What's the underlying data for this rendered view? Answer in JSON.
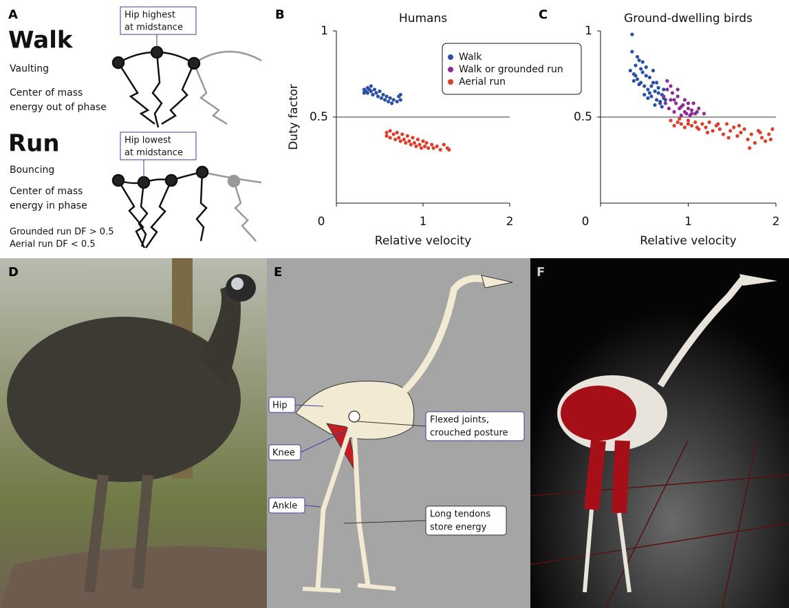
{
  "panel_labels": [
    "A",
    "B",
    "C",
    "D",
    "E",
    "F"
  ],
  "panel_a": {
    "walk_title": "Walk",
    "walk_gait": "Vaulting",
    "walk_energy": [
      "Center of mass",
      "energy out of phase"
    ],
    "walk_callout": [
      "Hip highest",
      "at midstance"
    ],
    "run_title": "Run",
    "run_gait": "Bouncing",
    "run_energy": [
      "Center of mass",
      "energy in phase"
    ],
    "run_callout": [
      "Hip lowest",
      "at midstance"
    ],
    "duty_factor_notes": [
      "Grounded run DF > 0.5",
      "Aerial run DF < 0.5"
    ]
  },
  "chart_data": [
    {
      "type": "scatter",
      "title": "Humans",
      "x_label": "Relative velocity",
      "y_label": "Duty factor",
      "xlim": [
        0,
        2
      ],
      "ylim": [
        0,
        1
      ],
      "xticks": [
        0,
        1,
        2
      ],
      "yticks": [
        0.5,
        1
      ],
      "reference_line": 0.5,
      "legend": "top-right",
      "series": [
        {
          "name": "Walk",
          "color": "#2a4fa8",
          "x": [
            0.32,
            0.32,
            0.34,
            0.36,
            0.36,
            0.38,
            0.4,
            0.4,
            0.42,
            0.44,
            0.46,
            0.48,
            0.5,
            0.52,
            0.54,
            0.56,
            0.58,
            0.6,
            0.62,
            0.64,
            0.66,
            0.7,
            0.72,
            0.74,
            0.74
          ],
          "values": [
            0.64,
            0.66,
            0.65,
            0.67,
            0.64,
            0.66,
            0.65,
            0.68,
            0.63,
            0.66,
            0.64,
            0.62,
            0.65,
            0.61,
            0.63,
            0.6,
            0.62,
            0.59,
            0.61,
            0.58,
            0.6,
            0.59,
            0.62,
            0.6,
            0.63
          ]
        },
        {
          "name": "Walk or grounded run",
          "color": "#8e2a96",
          "x": [],
          "values": []
        },
        {
          "name": "Aerial run",
          "color": "#e03c2a",
          "x": [
            0.58,
            0.58,
            0.62,
            0.62,
            0.66,
            0.68,
            0.7,
            0.72,
            0.74,
            0.76,
            0.78,
            0.8,
            0.82,
            0.84,
            0.86,
            0.88,
            0.9,
            0.92,
            0.94,
            0.96,
            0.98,
            1.0,
            1.02,
            1.04,
            1.06,
            1.1,
            1.12,
            1.16,
            1.2,
            1.24,
            1.28,
            1.3
          ],
          "values": [
            0.41,
            0.39,
            0.42,
            0.38,
            0.4,
            0.37,
            0.41,
            0.38,
            0.36,
            0.4,
            0.37,
            0.35,
            0.39,
            0.36,
            0.34,
            0.38,
            0.35,
            0.33,
            0.37,
            0.34,
            0.32,
            0.36,
            0.33,
            0.35,
            0.32,
            0.34,
            0.32,
            0.33,
            0.31,
            0.34,
            0.32,
            0.31
          ]
        }
      ]
    },
    {
      "type": "scatter",
      "title": "Ground-dwelling birds",
      "x_label": "Relative velocity",
      "xlim": [
        0,
        2
      ],
      "ylim": [
        0,
        1
      ],
      "xticks": [
        0,
        1,
        2
      ],
      "yticks": [
        0.5,
        1
      ],
      "reference_line": 0.5,
      "series": [
        {
          "name": "Walk",
          "color": "#2a4fa8",
          "x": [
            0.36,
            0.34,
            0.38,
            0.4,
            0.42,
            0.44,
            0.46,
            0.48,
            0.5,
            0.52,
            0.54,
            0.56,
            0.58,
            0.6,
            0.62,
            0.64,
            0.66,
            0.68,
            0.7,
            0.72,
            0.36,
            0.4,
            0.44,
            0.48,
            0.52,
            0.56,
            0.6,
            0.64,
            0.68,
            0.72,
            0.38,
            0.46,
            0.54,
            0.62,
            0.7,
            0.42,
            0.5,
            0.58,
            0.66,
            0.74
          ],
          "values": [
            0.98,
            0.77,
            0.75,
            0.8,
            0.72,
            0.83,
            0.7,
            0.76,
            0.68,
            0.79,
            0.66,
            0.73,
            0.62,
            0.7,
            0.65,
            0.6,
            0.67,
            0.58,
            0.63,
            0.61,
            0.88,
            0.74,
            0.69,
            0.82,
            0.74,
            0.64,
            0.77,
            0.7,
            0.59,
            0.66,
            0.71,
            0.78,
            0.61,
            0.57,
            0.56,
            0.85,
            0.63,
            0.68,
            0.64,
            0.6
          ]
        },
        {
          "name": "Walk or grounded run",
          "color": "#8e2a96",
          "x": [
            0.72,
            0.74,
            0.76,
            0.78,
            0.8,
            0.82,
            0.84,
            0.86,
            0.88,
            0.9,
            0.92,
            0.94,
            0.96,
            0.98,
            1.0,
            1.02,
            1.04,
            1.06,
            1.08,
            1.1,
            0.76,
            0.8,
            0.84,
            0.88,
            0.92,
            0.96,
            1.0,
            1.04,
            1.12,
            1.18
          ],
          "values": [
            0.62,
            0.58,
            0.66,
            0.55,
            0.6,
            0.64,
            0.53,
            0.58,
            0.62,
            0.55,
            0.51,
            0.57,
            0.6,
            0.52,
            0.55,
            0.51,
            0.54,
            0.58,
            0.52,
            0.53,
            0.71,
            0.68,
            0.6,
            0.66,
            0.56,
            0.53,
            0.58,
            0.52,
            0.55,
            0.52
          ]
        },
        {
          "name": "Aerial run",
          "color": "#e03c2a",
          "x": [
            0.8,
            0.84,
            0.88,
            0.92,
            0.96,
            1.0,
            1.04,
            1.08,
            1.12,
            1.16,
            1.2,
            1.24,
            1.28,
            1.32,
            1.36,
            1.4,
            1.44,
            1.48,
            1.52,
            1.56,
            1.6,
            1.64,
            1.68,
            1.72,
            1.76,
            1.8,
            1.84,
            1.88,
            1.92,
            1.96,
            0.9,
            1.0,
            1.1,
            1.22,
            1.34,
            1.46,
            1.58,
            1.7,
            1.82,
            1.94
          ],
          "values": [
            0.48,
            0.45,
            0.47,
            0.46,
            0.44,
            0.48,
            0.45,
            0.47,
            0.43,
            0.46,
            0.44,
            0.47,
            0.42,
            0.45,
            0.43,
            0.4,
            0.46,
            0.42,
            0.44,
            0.39,
            0.41,
            0.43,
            0.37,
            0.4,
            0.35,
            0.42,
            0.38,
            0.36,
            0.4,
            0.43,
            0.49,
            0.46,
            0.44,
            0.41,
            0.46,
            0.38,
            0.45,
            0.32,
            0.41,
            0.37
          ]
        }
      ]
    }
  ],
  "panel_e": {
    "hip": "Hip",
    "knee": "Knee",
    "ankle": "Ankle",
    "flexed": [
      "Flexed joints,",
      "crouched posture"
    ],
    "tendons": [
      "Long tendons",
      "store energy"
    ]
  }
}
